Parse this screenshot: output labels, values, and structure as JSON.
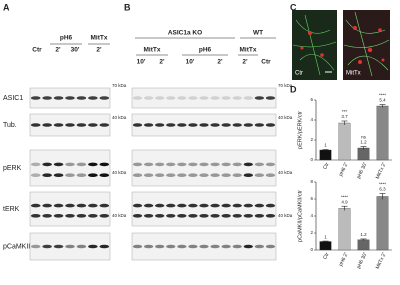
{
  "panel_a": {
    "label": "A",
    "treatments": [
      "Ctr",
      "pH6",
      "MitTx"
    ],
    "times": [
      "2'",
      "30'",
      "2'"
    ],
    "rows": [
      "ASIC1",
      "Tub.",
      "pERK",
      "tERK",
      "pCaMKII"
    ],
    "markers": [
      "70 kDa",
      "40 kDa",
      "40 kDa",
      "40 kDa"
    ]
  },
  "panel_b": {
    "label": "B",
    "groups": [
      "ASIC1a KO",
      "WT"
    ],
    "treatments": [
      "MitTx",
      "pH6",
      "MitTx"
    ],
    "times": [
      "10'",
      "2'",
      "10'",
      "2'",
      "2'",
      "Ctr"
    ],
    "markers": [
      "70 kDa",
      "40 kDa",
      "40 kDa",
      "40 kDa"
    ]
  },
  "panel_c": {
    "label": "C",
    "captions": [
      "Ctr",
      "MitTx"
    ]
  },
  "panel_d": {
    "label": "D"
  },
  "chart_data": [
    {
      "type": "bar",
      "ylabel": "pERK/pERK/ctr",
      "categories": [
        "Ctr",
        "pH6 2'",
        "pH6 30'",
        "MitTx 2'"
      ],
      "values": [
        1,
        3.7,
        1.2,
        5.4
      ],
      "errors": [
        0.05,
        0.2,
        0.15,
        0.15
      ],
      "annotations": [
        null,
        "***",
        "ns",
        "****"
      ],
      "colors": [
        "#111111",
        "#bbbbbb",
        "#666666",
        "#888888"
      ],
      "ylim": [
        0,
        6
      ],
      "yticks": [
        0,
        2,
        4,
        6
      ]
    },
    {
      "type": "bar",
      "ylabel": "pCaMKII/pCaMKII/ctr",
      "categories": [
        "Ctr",
        "pH6 2'",
        "pH6 30'",
        "MitTx 2'"
      ],
      "values": [
        1,
        4.9,
        1.2,
        6.3
      ],
      "errors": [
        0.05,
        0.25,
        0.1,
        0.35
      ],
      "annotations": [
        null,
        "****",
        null,
        "****"
      ],
      "colors": [
        "#111111",
        "#bbbbbb",
        "#666666",
        "#888888"
      ],
      "ylim": [
        0,
        8
      ],
      "yticks": [
        0,
        2,
        4,
        6,
        8
      ]
    }
  ]
}
